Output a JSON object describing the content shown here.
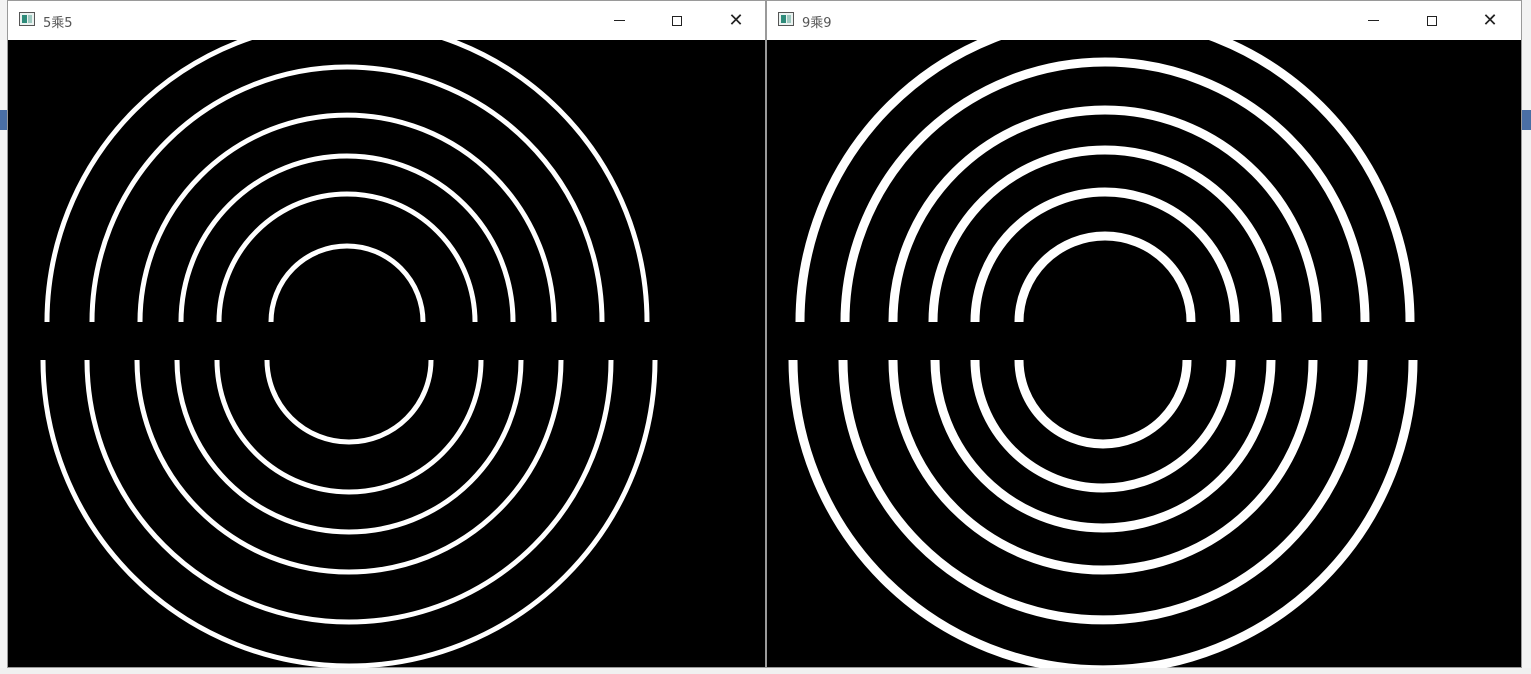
{
  "windows": [
    {
      "title": "5乘5",
      "icon": "opencv-window-icon",
      "controls": [
        "minimize",
        "maximize",
        "close"
      ]
    },
    {
      "title": "9乘9",
      "icon": "opencv-window-icon",
      "controls": [
        "minimize",
        "maximize",
        "close"
      ]
    }
  ],
  "image_content": {
    "colors": {
      "background": "#000000",
      "foreground": "#ffffff"
    },
    "ring_count": 6
  }
}
